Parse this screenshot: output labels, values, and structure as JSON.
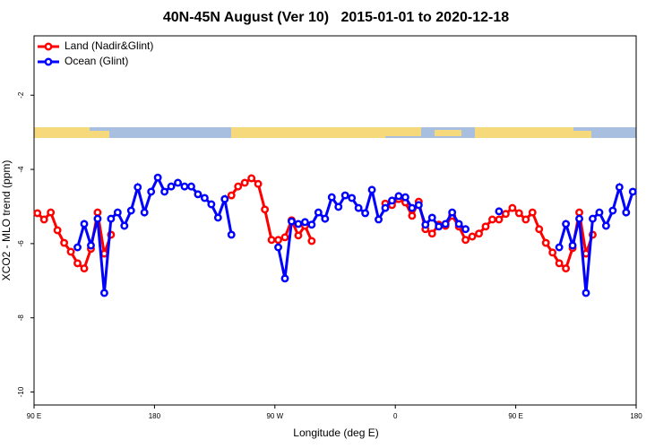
{
  "chart_data": {
    "type": "line",
    "title": "40N-45N August (Ver 10)   2015-01-01 to 2020-12-18",
    "xlabel": "Longitude (deg E)",
    "ylabel": "XCO2 - MLO trend (ppm)",
    "x": [
      92.5,
      97.5,
      102.5,
      107.5,
      112.5,
      117.5,
      122.5,
      127.5,
      132.5,
      137.5,
      142.5,
      147.5,
      152.5,
      157.5,
      162.5,
      167.5,
      172.5,
      177.5,
      182.5,
      187.5,
      192.5,
      197.5,
      202.5,
      207.5,
      212.5,
      217.5,
      222.5,
      227.5,
      232.5,
      237.5,
      242.5,
      247.5,
      252.5,
      257.5,
      262.5,
      267.5,
      272.5,
      277.5,
      282.5,
      287.5,
      292.5,
      297.5,
      302.5,
      307.5,
      312.5,
      317.5,
      322.5,
      327.5,
      332.5,
      337.5,
      342.5,
      347.5,
      352.5,
      357.5,
      362.5,
      367.5,
      372.5,
      377.5,
      382.5,
      387.5,
      392.5,
      397.5,
      402.5,
      407.5,
      412.5,
      417.5,
      422.5,
      427.5,
      432.5,
      437.5,
      442.5,
      447.5,
      452.5,
      457.5,
      462.5,
      467.5,
      472.5,
      477.5,
      482.5,
      487.5,
      492.5,
      497.5,
      502.5,
      507.5,
      512.5,
      517.5,
      522.5,
      527.5,
      532.5,
      537.5
    ],
    "series": [
      {
        "name": "Land (Nadir&Glint)",
        "color": "#ff0000",
        "values": [
          -5.18,
          -5.35,
          -5.16,
          -5.64,
          -5.98,
          -6.22,
          -6.53,
          -6.67,
          -6.14,
          -5.16,
          -6.27,
          -5.76,
          null,
          null,
          null,
          null,
          null,
          null,
          null,
          null,
          null,
          null,
          null,
          null,
          null,
          null,
          null,
          null,
          null,
          -4.7,
          -4.46,
          -4.36,
          -4.24,
          -4.39,
          -5.08,
          -5.9,
          -5.9,
          -5.83,
          -5.37,
          -5.78,
          -5.52,
          -5.93,
          null,
          null,
          null,
          null,
          null,
          null,
          null,
          null,
          null,
          null,
          -4.92,
          -4.96,
          -4.8,
          -4.89,
          -5.25,
          -4.87,
          -5.61,
          -5.73,
          -5.49,
          -5.52,
          -5.25,
          -5.54,
          -5.9,
          -5.81,
          -5.73,
          -5.54,
          -5.35,
          -5.35,
          -5.2,
          -5.04,
          -5.18,
          -5.35,
          -5.16,
          -5.61,
          -5.98,
          -6.24,
          -6.53,
          -6.67,
          -6.12,
          -5.16,
          -6.27,
          -5.76,
          null,
          null,
          null,
          null,
          null,
          null
        ]
      },
      {
        "name": "Ocean (Glint)",
        "color": "#0000ff",
        "values": [
          null,
          null,
          null,
          null,
          null,
          null,
          -6.1,
          -5.47,
          -6.05,
          -5.33,
          -7.33,
          -5.33,
          -5.16,
          -5.52,
          -5.11,
          -4.48,
          -5.16,
          -4.6,
          -4.22,
          -4.6,
          -4.46,
          -4.36,
          -4.46,
          -4.46,
          -4.67,
          -4.77,
          -4.94,
          -5.3,
          -4.8,
          -5.76,
          null,
          null,
          null,
          null,
          null,
          null,
          -6.1,
          -6.94,
          -5.4,
          -5.47,
          -5.42,
          -5.49,
          -5.16,
          -5.33,
          -4.75,
          -5.01,
          -4.7,
          -4.77,
          -5.04,
          -5.18,
          -4.55,
          -5.35,
          -5.04,
          -4.84,
          -4.72,
          -4.75,
          -5.04,
          -4.96,
          -5.49,
          -5.3,
          -5.54,
          -5.47,
          -5.16,
          -5.47,
          -5.61,
          null,
          null,
          null,
          null,
          -5.13,
          null,
          null,
          null,
          null,
          null,
          null,
          null,
          null,
          -6.1,
          -5.47,
          -6.05,
          -5.33,
          -7.33,
          -5.33,
          -5.16,
          -5.52,
          -5.11,
          -4.48,
          -5.16,
          -4.6
        ]
      }
    ],
    "xlim": [
      90,
      540
    ],
    "xticks": [
      {
        "value": 90,
        "label": "90 E"
      },
      180,
      {
        "value": 270,
        "label": "90 W"
      },
      {
        "value": 360,
        "label": "0"
      },
      {
        "value": 450,
        "label": "90 E"
      },
      {
        "value": 540,
        "label": "180"
      }
    ],
    "ylim": [
      -10.35,
      -0.4
    ],
    "yticks": [
      -2,
      -4,
      -6,
      -8,
      -10
    ],
    "legend": "top-left"
  }
}
